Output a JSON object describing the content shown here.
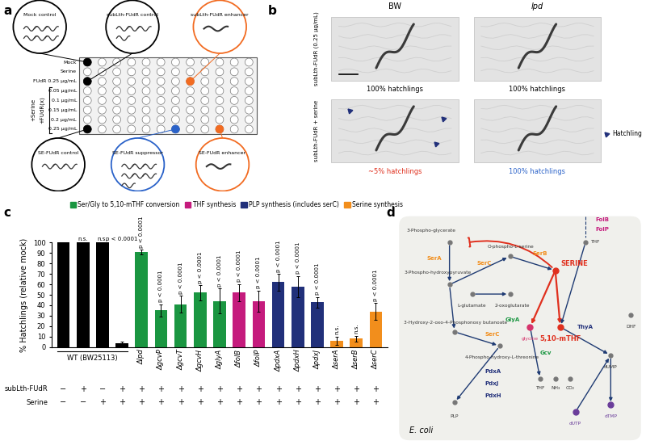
{
  "panel_labels": [
    "a",
    "b",
    "c",
    "d"
  ],
  "panel_a": {
    "plate_rows": [
      "Mock",
      "Serine",
      "FUdR 0.25 μg/mL",
      "0.05 μg/mL",
      "0.1 μg/mL",
      "0.15 μg/mL",
      "0.2 μg/mL",
      "0.25 μg/mL"
    ],
    "side_labels": [
      "+Serine",
      "+FUdR(x)"
    ],
    "callouts_top": [
      {
        "label": "Mock control",
        "color": "#000000"
      },
      {
        "label": "subLth-FUdR control",
        "color": "#000000"
      },
      {
        "label": "subLth-FUdR enhancer",
        "color": "#f26b21"
      }
    ],
    "callouts_bottom": [
      {
        "label": "SE-FUdR control",
        "color": "#000000"
      },
      {
        "label": "SE-FUdR suppressor",
        "color": "#2a62c9"
      },
      {
        "label": "SE-FUdR enhancer",
        "color": "#f26b21"
      }
    ]
  },
  "panel_b": {
    "columns": [
      "BW",
      "lpd"
    ],
    "rows": [
      "subLth-FUdR (0.25 μg/mL)",
      "subLth-FUdR + serine"
    ],
    "captions": [
      [
        {
          "text": "100% hatchlings",
          "color": "#000000"
        },
        {
          "text": "100% hatchlings",
          "color": "#000000"
        }
      ],
      [
        {
          "text": "~5% hatchlings",
          "color": "#e0301e"
        },
        {
          "text": "100% hatchlings",
          "color": "#2a62c9"
        }
      ]
    ],
    "marker_legend": "Hatchling"
  },
  "chart_data": {
    "type": "bar",
    "ylabel": "% Hatchlings (relative mock)",
    "categories": [
      null,
      null,
      null,
      null,
      "Δlpd",
      "ΔgcvP",
      "ΔgcvT",
      "ΔgcvH",
      "ΔglyA",
      "ΔfolB",
      "ΔfolP",
      "ΔpdxA",
      "ΔpdxH",
      "ΔpdxJ",
      "ΔserA",
      "ΔserB",
      "ΔserC"
    ],
    "x_group_label": "WT (BW25113)",
    "values": [
      100,
      100,
      100,
      3.5,
      91,
      35,
      41,
      52,
      44,
      52,
      44,
      62,
      58,
      43,
      6,
      8,
      34
    ],
    "errors": [
      0,
      0,
      0,
      2,
      2,
      6,
      8,
      7,
      12,
      8,
      10,
      8,
      10,
      5,
      4,
      3,
      8
    ],
    "colors": [
      "#000000",
      "#000000",
      "#000000",
      "#000000",
      "#1a9641",
      "#1a9641",
      "#1a9641",
      "#1a9641",
      "#1a9641",
      "#c51b7d",
      "#c51b7d",
      "#21307a",
      "#21307a",
      "#21307a",
      "#f28e1c",
      "#f28e1c",
      "#f28e1c"
    ],
    "significance": [
      null,
      "n.s.",
      "n.s.",
      "p < 0.0001",
      "p < 0.0001",
      "p < 0.0001",
      "p < 0.0001",
      "p < 0.0001",
      "p < 0.0001",
      "p < 0.0001",
      "p < 0.0001",
      "p < 0.0001",
      "p < 0.0001",
      "p < 0.0001",
      "n.s.",
      "n.s.",
      "p < 0.0001"
    ],
    "conditions": [
      {
        "name": "subLth-FUdR",
        "values": [
          "−",
          "+",
          "−",
          "+",
          "+",
          "+",
          "+",
          "+",
          "+",
          "+",
          "+",
          "+",
          "+",
          "+",
          "+",
          "+",
          "+"
        ]
      },
      {
        "name": "Serine",
        "values": [
          "−",
          "−",
          "+",
          "+",
          "+",
          "+",
          "+",
          "+",
          "+",
          "+",
          "+",
          "+",
          "+",
          "+",
          "+",
          "+",
          "+"
        ]
      }
    ],
    "legend_entries": [
      {
        "name": "Ser/Gly to 5,10-mTHF conversion",
        "color": "#1a9641"
      },
      {
        "name": "THF synthesis",
        "color": "#c51b7d"
      },
      {
        "name": "PLP synthesis (includes serC)",
        "color": "#21307a"
      },
      {
        "name": "Serine synthesis",
        "color": "#f28e1c"
      }
    ],
    "legend": "lower center",
    "ylim": [
      0,
      100
    ],
    "yticks": [
      0,
      10,
      20,
      30,
      40,
      50,
      60,
      70,
      80,
      90,
      100
    ],
    "grid": false
  },
  "panel_d": {
    "organism": "E. coli",
    "metabolites": [
      {
        "label": "3-Phospho-glycerate",
        "color": "#333333"
      },
      {
        "label": "3-Phospho-hydroxypyruvate",
        "color": "#333333"
      },
      {
        "label": "L-glutamate",
        "color": "#333333"
      },
      {
        "label": "2-oxoglutarate",
        "color": "#333333"
      },
      {
        "label": "O-phospho-L-serine",
        "color": "#333333"
      },
      {
        "label": "SERINE",
        "color": "#e0301e"
      },
      {
        "label": "THF",
        "color": "#333333"
      },
      {
        "label": "5,10-mTHF",
        "color": "#e0301e"
      },
      {
        "label": "glycine",
        "color": "#d6336c"
      },
      {
        "label": "dUMP",
        "color": "#333333"
      },
      {
        "label": "dTMP",
        "color": "#6a3d9a"
      },
      {
        "label": "DHF",
        "color": "#333333"
      },
      {
        "label": "dUTP",
        "color": "#6a3d9a"
      },
      {
        "label": "3-Hydroxy-2-oxo-4-Phosphonoxy butanoate",
        "color": "#333333"
      },
      {
        "label": "4-Phospho-hydroxy-L-threonine",
        "color": "#333333"
      },
      {
        "label": "PLP",
        "color": "#333333"
      },
      {
        "label": "THF",
        "color": "#333333"
      },
      {
        "label": "NH₃",
        "color": "#333333"
      },
      {
        "label": "CO₂",
        "color": "#333333"
      }
    ],
    "enzymes": [
      {
        "label": "SerA",
        "color": "#f28e1c"
      },
      {
        "label": "SerC",
        "color": "#f28e1c"
      },
      {
        "label": "SerB",
        "color": "#f28e1c"
      },
      {
        "label": "SerC",
        "color": "#f28e1c"
      },
      {
        "label": "FolB",
        "color": "#c51b7d"
      },
      {
        "label": "FolP",
        "color": "#c51b7d"
      },
      {
        "label": "GlyA",
        "color": "#1a9641"
      },
      {
        "label": "Gcv",
        "color": "#1a9641"
      },
      {
        "label": "ThyA",
        "color": "#21307a"
      },
      {
        "label": "PdxA",
        "color": "#21307a"
      },
      {
        "label": "PdxJ",
        "color": "#21307a"
      },
      {
        "label": "PdxH",
        "color": "#21307a"
      }
    ]
  }
}
